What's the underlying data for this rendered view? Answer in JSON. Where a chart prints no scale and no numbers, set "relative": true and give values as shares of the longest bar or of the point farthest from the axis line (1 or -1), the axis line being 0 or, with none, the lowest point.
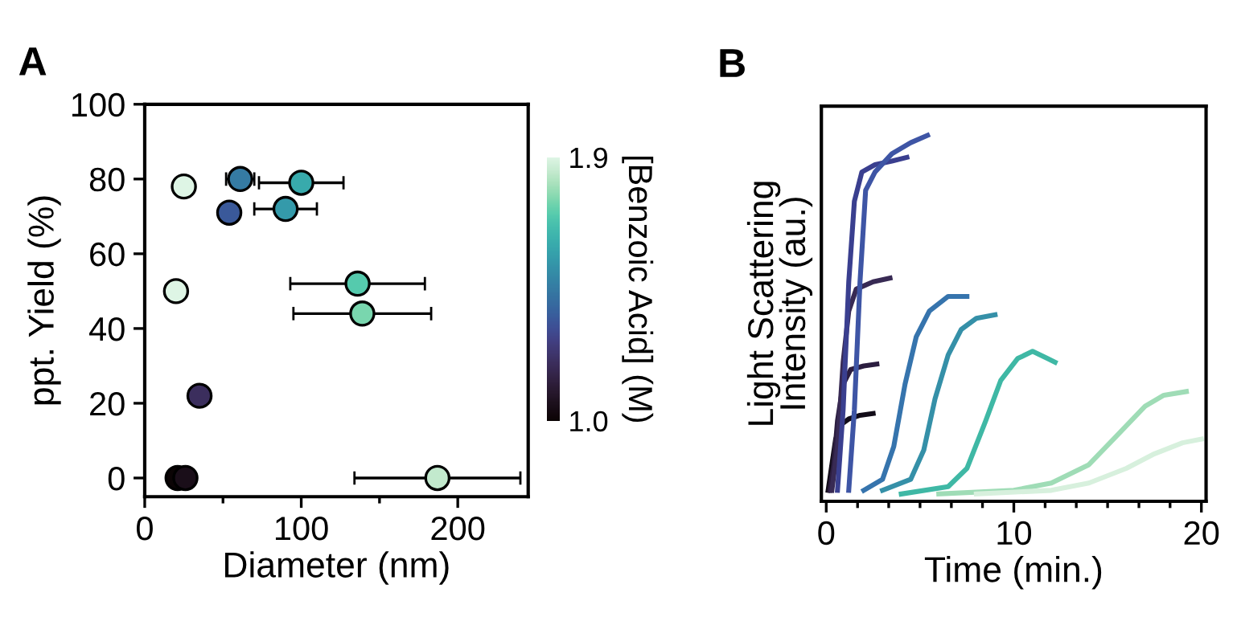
{
  "chart_data": [
    {
      "type": "scatter",
      "title": "A",
      "xlabel": "Diameter (nm)",
      "ylabel": "ppt. Yield (%)",
      "clabel": "[Benzoic Acid] (M)",
      "xlim": [
        0,
        245
      ],
      "xticks": [
        0,
        {
          "value": 50,
          "label": null
        },
        100,
        {
          "value": 150,
          "label": null
        },
        200
      ],
      "ylim": [
        -5,
        100
      ],
      "yticks": [
        0,
        20,
        40,
        60,
        80,
        100
      ],
      "clim": [
        1.0,
        1.9
      ],
      "cticks": [
        {
          "value": 1.0,
          "label": "1.0"
        },
        1.9
      ],
      "marker": "circle",
      "grid": false,
      "series": [
        {
          "x": [
            25,
            20,
            61,
            100,
            54,
            90,
            136,
            139,
            35,
            21,
            26,
            187
          ],
          "values": [
            78,
            50,
            80,
            79,
            71,
            72,
            52,
            44,
            22,
            0,
            0,
            0
          ],
          "cvalues": [
            1.9,
            1.9,
            1.45,
            1.6,
            1.35,
            1.55,
            1.7,
            1.75,
            1.2,
            1.0,
            1.05,
            1.85
          ],
          "xerrors": [
            null,
            null,
            9,
            27,
            null,
            20,
            43,
            44,
            null,
            null,
            null,
            53
          ]
        }
      ]
    },
    {
      "type": "line",
      "title": "B",
      "xlabel": "Time (min.)",
      "ylabel": "Light Scattering\nIntensity (au.)",
      "xlim": [
        -0.26,
        20.25
      ],
      "xticks": [
        0,
        {
          "value": 1.67,
          "label": null
        },
        {
          "value": 3.33,
          "label": null
        },
        {
          "value": 5,
          "label": null
        },
        {
          "value": 6.67,
          "label": null
        },
        {
          "value": 8.33,
          "label": null
        },
        10,
        {
          "value": 11.67,
          "label": null
        },
        {
          "value": 13.33,
          "label": null
        },
        {
          "value": 15,
          "label": null
        },
        {
          "value": 16.67,
          "label": null
        },
        {
          "value": 18.33,
          "label": null
        },
        20
      ],
      "relative": true,
      "tick_labels": "x",
      "grid": false,
      "line_style": "solid",
      "marker": "none",
      "series": [
        {
          "color": "#120c18",
          "x": [
            0.1,
            0.3,
            0.5,
            0.8,
            1.2,
            1.8,
            2.5
          ],
          "values": [
            0.03,
            0.1,
            0.17,
            0.21,
            0.225,
            0.235,
            0.24
          ]
        },
        {
          "color": "#2b1d3f",
          "x": [
            0.2,
            0.4,
            0.6,
            0.9,
            1.3,
            2.0,
            2.7
          ],
          "values": [
            0.03,
            0.1,
            0.22,
            0.32,
            0.36,
            0.37,
            0.375
          ]
        },
        {
          "color": "#382a54",
          "x": [
            0.3,
            0.6,
            0.9,
            1.2,
            1.6,
            2.5,
            3.4
          ],
          "values": [
            0.03,
            0.15,
            0.38,
            0.52,
            0.58,
            0.6,
            0.61
          ]
        },
        {
          "color": "#3a3f8f",
          "x": [
            0.6,
            0.9,
            1.2,
            1.5,
            1.9,
            2.6,
            3.5,
            4.3
          ],
          "values": [
            0.03,
            0.25,
            0.6,
            0.82,
            0.9,
            0.92,
            0.93,
            0.94
          ]
        },
        {
          "color": "#3e55a5",
          "x": [
            1.2,
            1.5,
            1.8,
            2.1,
            2.6,
            3.5,
            4.5,
            5.4
          ],
          "values": [
            0.03,
            0.25,
            0.6,
            0.85,
            0.9,
            0.95,
            0.98,
            1.0
          ]
        },
        {
          "color": "#3674ad",
          "x": [
            2.0,
            3.0,
            3.6,
            4.2,
            4.8,
            5.5,
            6.5,
            7.5
          ],
          "values": [
            0.03,
            0.06,
            0.15,
            0.32,
            0.45,
            0.52,
            0.56,
            0.56
          ]
        },
        {
          "color": "#3590a8",
          "x": [
            3.0,
            4.5,
            5.2,
            5.8,
            6.5,
            7.2,
            8.0,
            9.0
          ],
          "values": [
            0.03,
            0.06,
            0.14,
            0.28,
            0.4,
            0.47,
            0.5,
            0.51
          ]
        },
        {
          "color": "#3fb8a5",
          "x": [
            4.0,
            6.5,
            7.5,
            8.5,
            9.3,
            10.2,
            11.0,
            11.8,
            12.2
          ],
          "values": [
            0.02,
            0.04,
            0.09,
            0.22,
            0.33,
            0.39,
            0.41,
            0.39,
            0.38
          ]
        },
        {
          "color": "#9fdcb6",
          "x": [
            6,
            10,
            12,
            14,
            15.5,
            17,
            18,
            19.2
          ],
          "values": [
            0.02,
            0.03,
            0.05,
            0.1,
            0.18,
            0.26,
            0.29,
            0.3
          ]
        },
        {
          "color": "#d7f0dd",
          "x": [
            8,
            12,
            14,
            16,
            17.5,
            19,
            20
          ],
          "values": [
            0.02,
            0.03,
            0.05,
            0.09,
            0.13,
            0.16,
            0.17
          ]
        }
      ]
    }
  ]
}
